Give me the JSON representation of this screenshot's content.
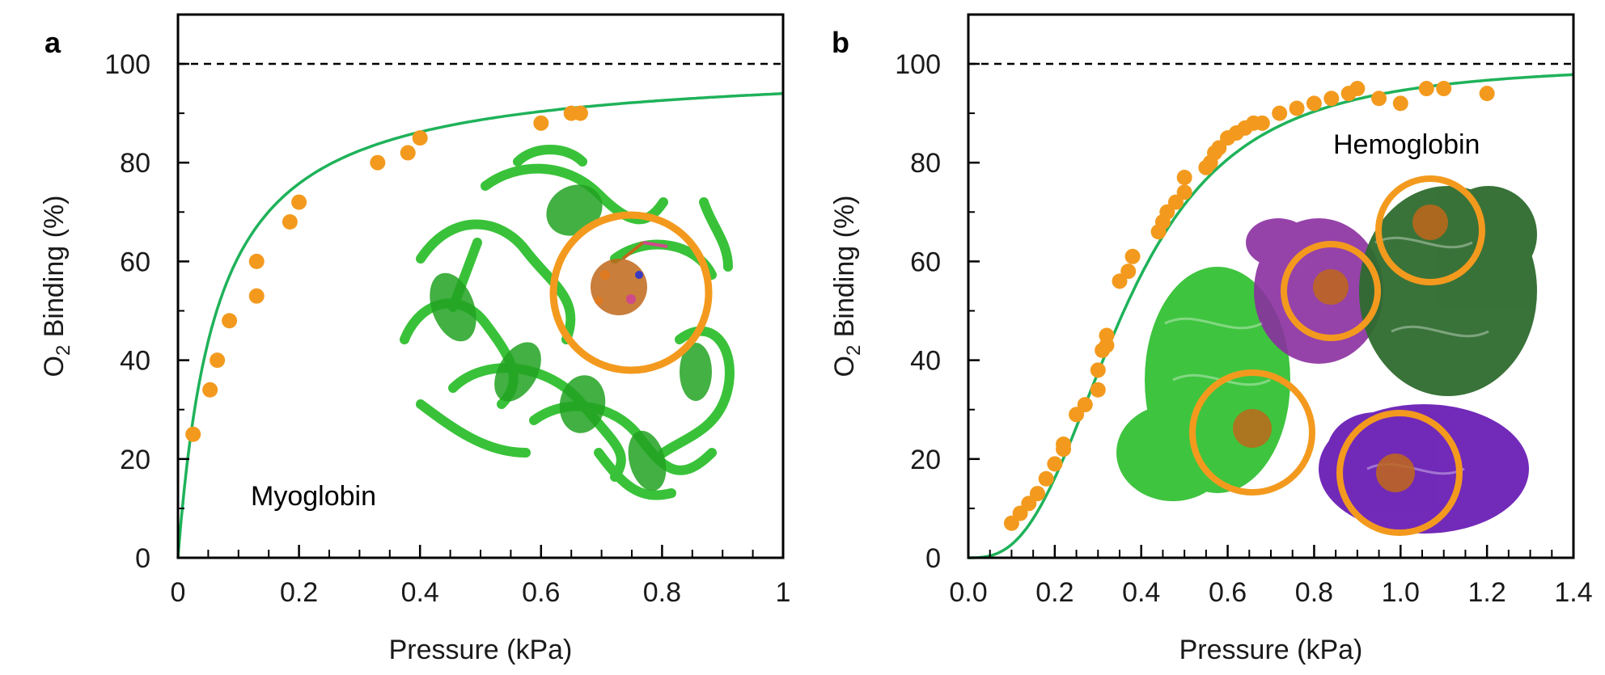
{
  "chart_data": [
    {
      "type": "scatter",
      "panel_label": "a",
      "xlabel": "Pressure (kPa)",
      "ylabel": "O2 Binding (%)",
      "xlim": [
        0,
        1
      ],
      "ylim": [
        0,
        100
      ],
      "xticks": [
        "0",
        "0.2",
        "0.4",
        "0.6",
        "0.8",
        "1"
      ],
      "xtick_values": [
        0,
        0.2,
        0.4,
        0.6,
        0.8,
        1
      ],
      "yticks": [
        "0",
        "20",
        "40",
        "60",
        "80",
        "100"
      ],
      "ytick_values": [
        0,
        20,
        40,
        60,
        80,
        100
      ],
      "reference_line": 100,
      "annotation": "Myoglobin",
      "series": [
        {
          "kind": "points",
          "color": "#f39a1e",
          "x": [
            0.025,
            0.053,
            0.065,
            0.085,
            0.13,
            0.13,
            0.185,
            0.2,
            0.33,
            0.38,
            0.4,
            0.6,
            0.65,
            0.665
          ],
          "y": [
            25,
            34,
            40,
            48,
            60,
            53,
            68,
            72,
            80,
            82,
            85,
            88,
            90,
            90
          ]
        },
        {
          "kind": "fit-line",
          "color": "#1fb25a",
          "model": "hyperbolic",
          "p50": 0.064,
          "n": 1
        }
      ]
    },
    {
      "type": "scatter",
      "panel_label": "b",
      "xlabel": "Pressure (kPa)",
      "ylabel": "O2 Binding (%)",
      "xlim": [
        0,
        1.4
      ],
      "ylim": [
        0,
        100
      ],
      "xticks": [
        "0.0",
        "0.2",
        "0.4",
        "0.6",
        "0.8",
        "1.0",
        "1.2",
        "1.4"
      ],
      "xtick_values": [
        0,
        0.2,
        0.4,
        0.6,
        0.8,
        1.0,
        1.2,
        1.4
      ],
      "yticks": [
        "0",
        "20",
        "40",
        "60",
        "80",
        "100"
      ],
      "ytick_values": [
        0,
        20,
        40,
        60,
        80,
        100
      ],
      "reference_line": 100,
      "annotation": "Hemoglobin",
      "series": [
        {
          "kind": "points",
          "color": "#f39a1e",
          "x": [
            0.1,
            0.12,
            0.14,
            0.16,
            0.18,
            0.2,
            0.22,
            0.22,
            0.25,
            0.27,
            0.3,
            0.3,
            0.31,
            0.32,
            0.32,
            0.35,
            0.37,
            0.38,
            0.44,
            0.45,
            0.46,
            0.48,
            0.5,
            0.5,
            0.55,
            0.56,
            0.57,
            0.58,
            0.6,
            0.62,
            0.64,
            0.66,
            0.68,
            0.72,
            0.76,
            0.8,
            0.84,
            0.88,
            0.9,
            0.95,
            1.0,
            1.06,
            1.1,
            1.2
          ],
          "y": [
            7,
            9,
            11,
            13,
            16,
            19,
            22,
            23,
            29,
            31,
            34,
            38,
            42,
            43,
            45,
            56,
            58,
            61,
            66,
            68,
            70,
            72,
            74,
            77,
            79,
            80,
            82,
            83,
            85,
            86,
            87,
            88,
            88,
            90,
            91,
            92,
            93,
            94,
            95,
            93,
            92,
            95,
            95,
            94
          ]
        },
        {
          "kind": "fit-line",
          "color": "#1fb25a",
          "model": "hill",
          "p50": 0.36,
          "n": 2.8
        }
      ]
    }
  ],
  "colors": {
    "marker": "#f39a1e",
    "fit_line": "#1fb25a",
    "myoglobin_chain": "#2fbf2f",
    "hemoglobin_alpha1": "#2fbf2f",
    "hemoglobin_alpha2": "#2e6b2e",
    "hemoglobin_beta1": "#8a2fa0",
    "hemoglobin_beta2": "#6a1fb5",
    "heme_circle": "#f39a1e"
  },
  "structure_images": [
    {
      "name": "myoglobin-structure-illustration"
    },
    {
      "name": "hemoglobin-structure-illustration"
    }
  ]
}
